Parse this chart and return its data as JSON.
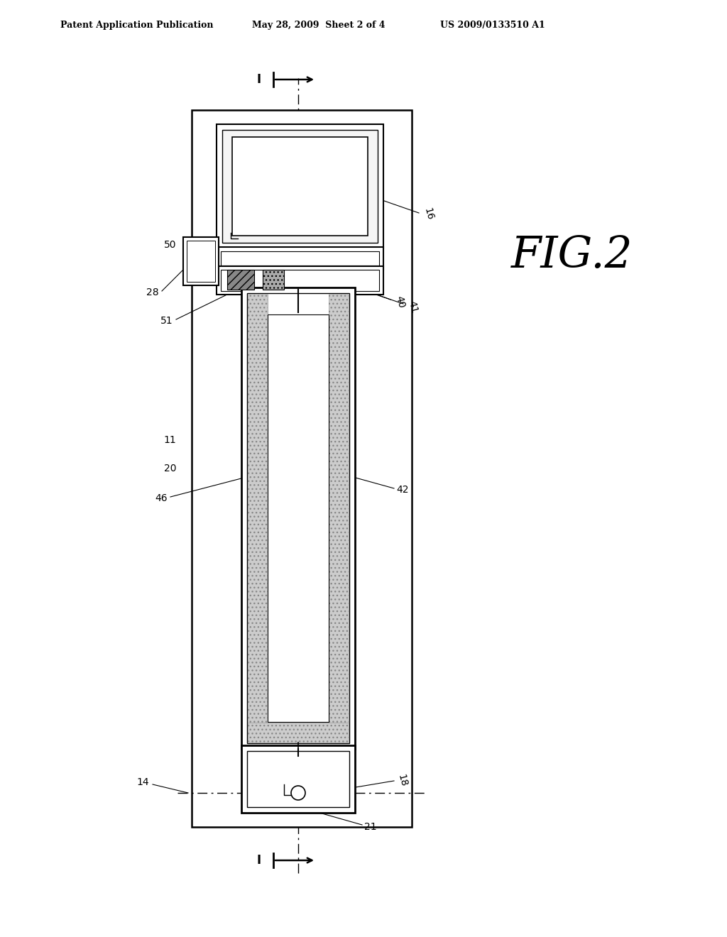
{
  "title_left": "Patent Application Publication",
  "title_mid": "May 28, 2009  Sheet 2 of 4",
  "title_right": "US 2009/0133510 A1",
  "fig_label": "FIG.2",
  "background_color": "#ffffff",
  "line_color": "#000000",
  "gray_dotted": "#c8c8c8",
  "label_fontsize": 10,
  "header_fontsize": 9
}
